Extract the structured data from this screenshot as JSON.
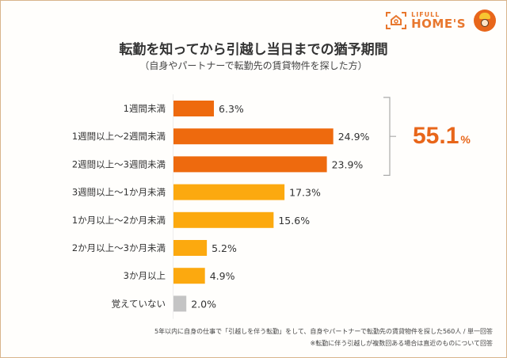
{
  "brand": {
    "line1": "LIFULL",
    "line2": "HOME'S",
    "color": "#e8772e"
  },
  "chart_data": {
    "type": "bar",
    "orientation": "horizontal",
    "title": "転勤を知ってから引越し当日までの猶予期間",
    "subtitle": "（自身やパートナーで転勤先の賃貸物件を探した方）",
    "categories": [
      "1週間未満",
      "1週間以上～2週間未満",
      "2週間以上～3週間未満",
      "3週間以上～1か月未満",
      "1か月以上～2か月未満",
      "2か月以上～3か月未満",
      "3か月以上",
      "覚えていない"
    ],
    "values": [
      6.3,
      24.9,
      23.9,
      17.3,
      15.6,
      5.2,
      4.9,
      2.0
    ],
    "value_labels": [
      "6.3%",
      "24.9%",
      "23.9%",
      "17.3%",
      "15.6%",
      "5.2%",
      "4.9%",
      "2.0%"
    ],
    "colors": [
      "#ee6a0e",
      "#ee6a0e",
      "#ee6a0e",
      "#fca90f",
      "#fca90f",
      "#fca90f",
      "#fca90f",
      "#c4c4c4"
    ],
    "unit": "%",
    "xlim": [
      0,
      30
    ],
    "grid": false,
    "annotation": {
      "group": [
        "1週間未満",
        "1週間以上～2週間未満",
        "2週間以上～3週間未満"
      ],
      "value": "55.1",
      "unit": "%",
      "color": "#e8661a"
    }
  },
  "footnotes": {
    "line1": "5年以内に自身の仕事で「引越しを伴う転勤」をして、自身やパートナーで転勤先の賃貸物件を探した560人 / 単一回答",
    "line2": "※転勤に伴う引越しが複数回ある場合は直近のものについて回答"
  }
}
